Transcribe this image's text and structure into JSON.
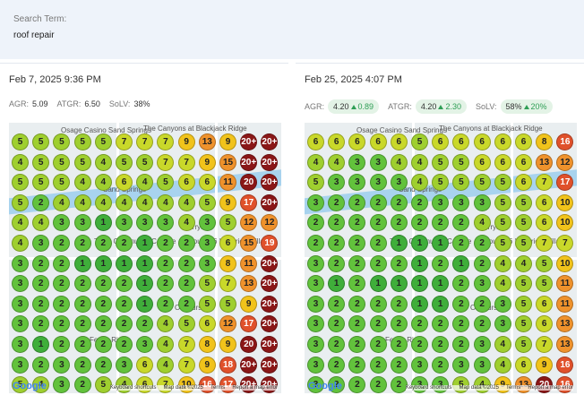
{
  "search": {
    "label": "Search Term:",
    "value": "roof repair"
  },
  "map_labels": [
    "Osage Casino Sand Springs",
    "The Canyons at Blackjack Ridge",
    "Sand Springs",
    "Berryhill",
    "Tulsa Community College",
    "Route 66 Historical Village",
    "Oakhurst",
    "Fern's Ridge"
  ],
  "map_footer": {
    "logo": "Google",
    "links": [
      "Keyboard shortcuts",
      "Map data ©2025",
      "Terms",
      "Report a map error"
    ]
  },
  "panels": [
    {
      "date": "Feb 7, 2025 9:36 PM",
      "stats": [
        {
          "label": "AGR:",
          "value": "5.09"
        },
        {
          "label": "ATGR:",
          "value": "6.50"
        },
        {
          "label": "SoLV:",
          "value": "38%"
        }
      ],
      "grid": [
        [
          "5",
          "5",
          "5",
          "5",
          "5",
          "7",
          "7",
          "7",
          "9",
          "13",
          "9",
          "20+",
          "20+"
        ],
        [
          "4",
          "5",
          "5",
          "5",
          "4",
          "5",
          "5",
          "7",
          "7",
          "9",
          "15",
          "20+",
          "20+"
        ],
        [
          "5",
          "5",
          "5",
          "4",
          "4",
          "6",
          "4",
          "5",
          "6",
          "6",
          "11",
          "20",
          "20+"
        ],
        [
          "5",
          "2",
          "4",
          "4",
          "4",
          "4",
          "4",
          "4",
          "4",
          "5",
          "9",
          "17",
          "20+"
        ],
        [
          "4",
          "4",
          "3",
          "3",
          "1",
          "3",
          "3",
          "3",
          "4",
          "3",
          "5",
          "12",
          "12"
        ],
        [
          "4",
          "3",
          "2",
          "2",
          "2",
          "2",
          "1",
          "2",
          "2",
          "3",
          "6",
          "15",
          "19"
        ],
        [
          "3",
          "2",
          "2",
          "1",
          "1",
          "1",
          "1",
          "2",
          "2",
          "3",
          "8",
          "11",
          "20+"
        ],
        [
          "3",
          "2",
          "2",
          "2",
          "2",
          "2",
          "1",
          "2",
          "2",
          "5",
          "7",
          "13",
          "20+"
        ],
        [
          "3",
          "2",
          "2",
          "2",
          "2",
          "2",
          "1",
          "2",
          "2",
          "5",
          "5",
          "9",
          "20+"
        ],
        [
          "3",
          "2",
          "2",
          "2",
          "2",
          "2",
          "2",
          "4",
          "5",
          "6",
          "12",
          "17",
          "20+"
        ],
        [
          "3",
          "1",
          "2",
          "2",
          "2",
          "2",
          "3",
          "4",
          "7",
          "8",
          "9",
          "20",
          "20+"
        ],
        [
          "3",
          "2",
          "3",
          "2",
          "2",
          "3",
          "6",
          "4",
          "7",
          "9",
          "18",
          "20+",
          "20+"
        ],
        [
          "5",
          "4",
          "3",
          "2",
          "5",
          "4",
          "6",
          "7",
          "10",
          "16",
          "17",
          "20+",
          "20+"
        ]
      ]
    },
    {
      "date": "Feb 25, 2025 4:07 PM",
      "stats": [
        {
          "label": "AGR:",
          "value": "4.20",
          "change": "0.89"
        },
        {
          "label": "ATGR:",
          "value": "4.20",
          "change": "2.30"
        },
        {
          "label": "SoLV:",
          "value": "58%",
          "change": "20%"
        }
      ],
      "grid": [
        [
          "6",
          "6",
          "6",
          "6",
          "6",
          "5",
          "6",
          "6",
          "6",
          "6",
          "6",
          "8",
          "16"
        ],
        [
          "4",
          "4",
          "3",
          "3",
          "4",
          "4",
          "5",
          "5",
          "6",
          "6",
          "6",
          "13",
          "12"
        ],
        [
          "5",
          "3",
          "3",
          "3",
          "3",
          "4",
          "5",
          "5",
          "5",
          "5",
          "6",
          "7",
          "17"
        ],
        [
          "3",
          "2",
          "2",
          "2",
          "2",
          "2",
          "3",
          "3",
          "3",
          "5",
          "5",
          "6",
          "10"
        ],
        [
          "2",
          "2",
          "2",
          "2",
          "2",
          "2",
          "2",
          "2",
          "4",
          "5",
          "5",
          "6",
          "10"
        ],
        [
          "2",
          "2",
          "2",
          "2",
          "1",
          "1",
          "1",
          "2",
          "2",
          "5",
          "5",
          "7",
          "7"
        ],
        [
          "3",
          "2",
          "2",
          "2",
          "2",
          "1",
          "2",
          "1",
          "2",
          "4",
          "4",
          "5",
          "10"
        ],
        [
          "3",
          "1",
          "2",
          "1",
          "1",
          "1",
          "1",
          "2",
          "3",
          "4",
          "5",
          "5",
          "11"
        ],
        [
          "3",
          "2",
          "2",
          "2",
          "2",
          "1",
          "1",
          "2",
          "2",
          "3",
          "5",
          "6",
          "11"
        ],
        [
          "3",
          "2",
          "2",
          "2",
          "2",
          "2",
          "2",
          "2",
          "2",
          "3",
          "5",
          "6",
          "13"
        ],
        [
          "3",
          "2",
          "2",
          "2",
          "2",
          "2",
          "2",
          "2",
          "3",
          "4",
          "5",
          "7",
          "13"
        ],
        [
          "3",
          "2",
          "2",
          "2",
          "2",
          "3",
          "2",
          "3",
          "3",
          "4",
          "6",
          "9",
          "16"
        ],
        [
          "3",
          "2",
          "2",
          "2",
          "2",
          "3",
          "3",
          "5",
          "4",
          "9",
          "13",
          "20",
          "16"
        ]
      ]
    }
  ]
}
